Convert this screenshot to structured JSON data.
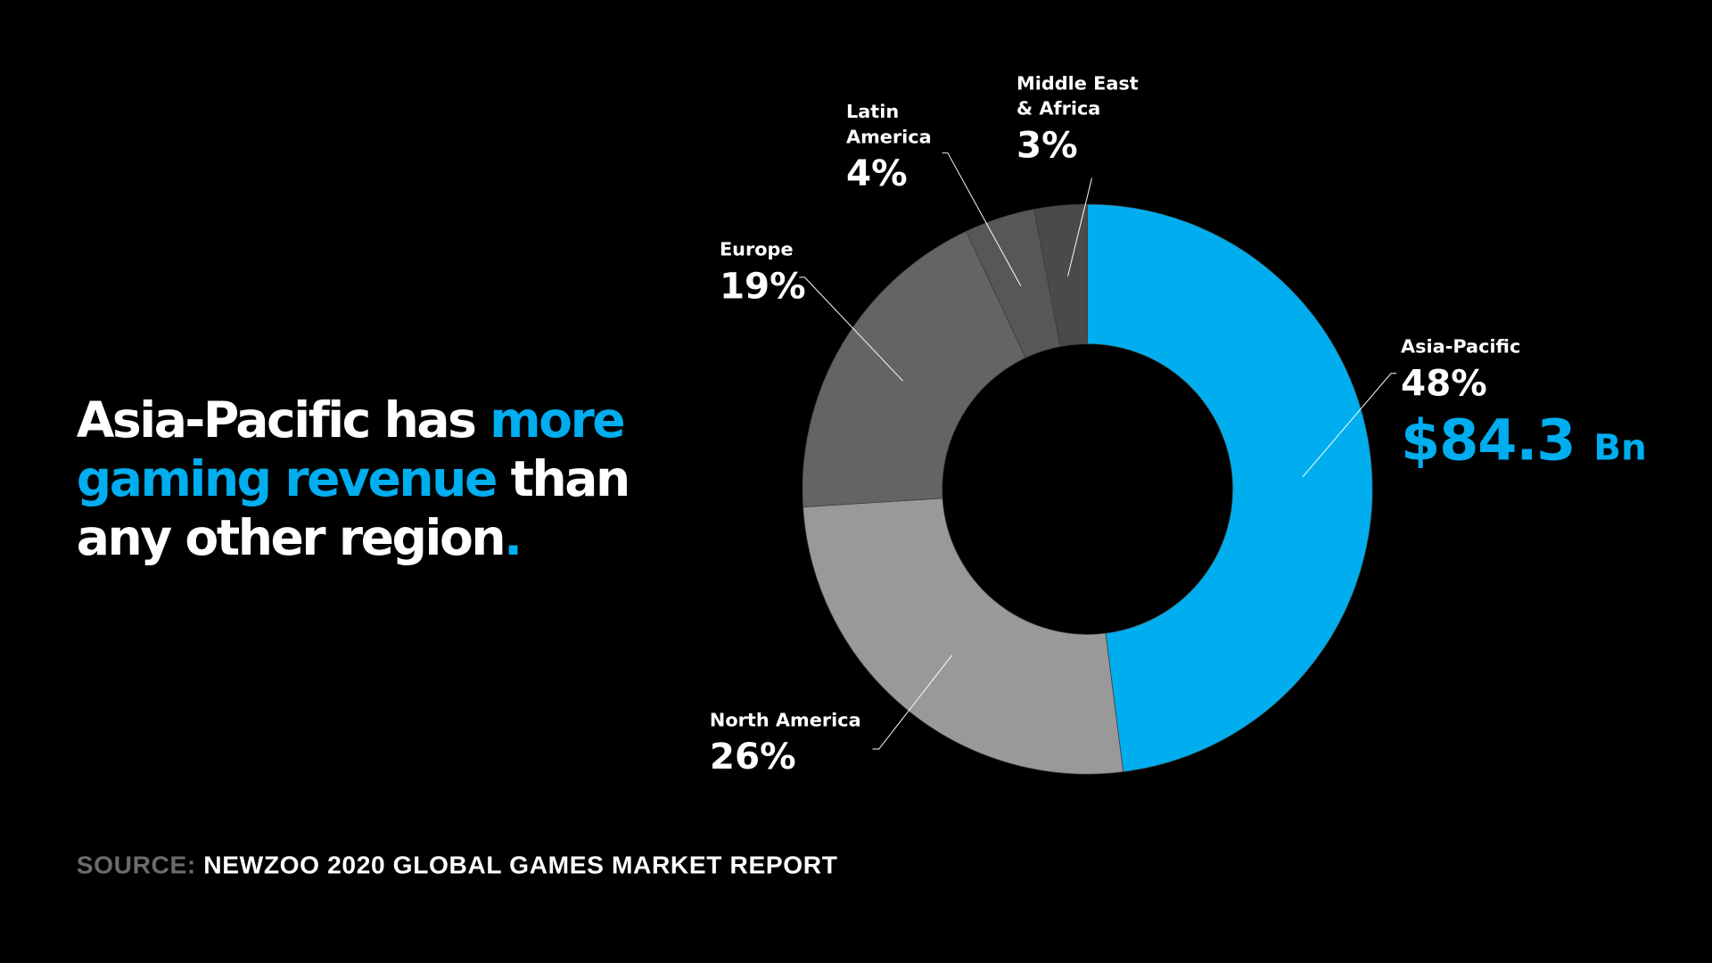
{
  "headline": {
    "part1": "Asia-Pacific has ",
    "highlight": "more gaming revenue",
    "part2": " than any other region",
    "period": "."
  },
  "source": {
    "key": "SOURCE:",
    "value": "NEWZOO 2020 GLOBAL GAMES MARKET REPORT"
  },
  "colors": {
    "accent": "#00AEEF",
    "north_america": "#999999",
    "europe": "#646464",
    "latin_america": "#575757",
    "middle_east_africa": "#4a4a4a"
  },
  "chart_data": {
    "type": "pie",
    "variant": "donut",
    "start": "top, clockwise",
    "slices": [
      {
        "label": "Asia-Pacific",
        "value": 48,
        "display": "48%",
        "color": "#00AEEF",
        "extra_value": "$84.3",
        "extra_unit": "Bn"
      },
      {
        "label": "North America",
        "value": 26,
        "display": "26%",
        "color": "#999999"
      },
      {
        "label": "Europe",
        "value": 19,
        "display": "19%",
        "color": "#646464"
      },
      {
        "label": "Latin America",
        "value": 4,
        "display": "4%",
        "color": "#575757"
      },
      {
        "label": "Middle East & Africa",
        "value": 3,
        "display": "3%",
        "color": "#4a4a4a"
      }
    ]
  }
}
